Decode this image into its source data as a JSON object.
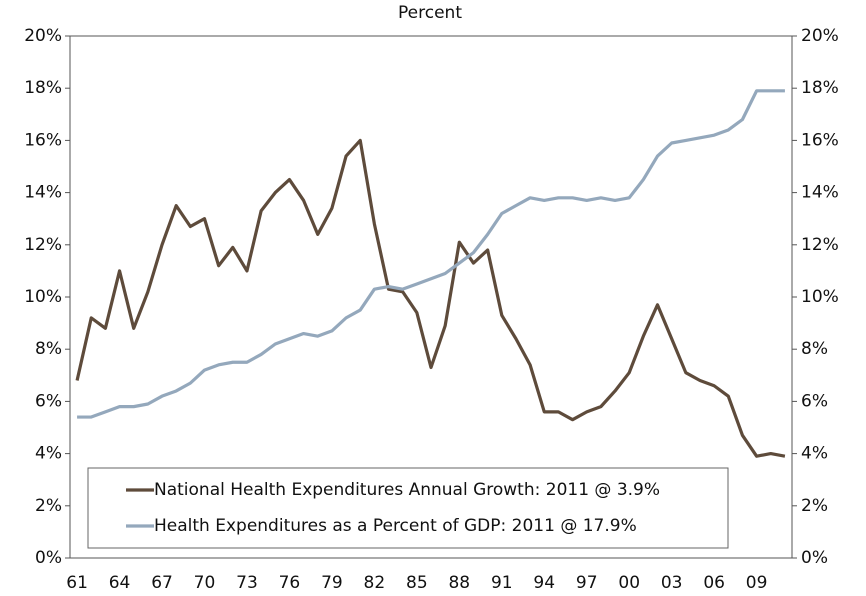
{
  "chart_data": {
    "type": "line",
    "title": "Percent",
    "categories": [
      "61",
      null,
      null,
      "64",
      null,
      null,
      "67",
      null,
      null,
      "70",
      null,
      null,
      "73",
      null,
      null,
      "76",
      null,
      null,
      "79",
      null,
      null,
      "82",
      null,
      null,
      "85",
      null,
      null,
      "88",
      null,
      null,
      "91",
      null,
      null,
      "94",
      null,
      null,
      "97",
      null,
      null,
      "00",
      null,
      null,
      "03",
      null,
      null,
      "06",
      null,
      null,
      "09",
      null,
      null
    ],
    "series": [
      {
        "name": "National Health Expenditures Annual Growth: 2011 @ 3.9%",
        "color": "#5e4b3b",
        "values": [
          6.8,
          9.2,
          8.8,
          11.0,
          8.8,
          10.2,
          12.0,
          13.5,
          12.7,
          13.0,
          11.2,
          11.9,
          11.0,
          13.3,
          14.0,
          14.5,
          13.7,
          12.4,
          13.4,
          15.4,
          16.0,
          12.8,
          10.3,
          10.2,
          9.4,
          7.3,
          8.9,
          12.1,
          11.3,
          11.8,
          9.3,
          8.4,
          7.4,
          5.6,
          5.6,
          5.3,
          5.6,
          5.8,
          6.4,
          7.1,
          8.5,
          9.7,
          8.4,
          7.1,
          6.8,
          6.6,
          6.2,
          4.7,
          3.9,
          4.0,
          3.9
        ]
      },
      {
        "name": "Health Expenditures as a Percent of GDP: 2011 @ 17.9%",
        "color": "#94a8bc",
        "values": [
          5.4,
          5.4,
          5.6,
          5.8,
          5.8,
          5.9,
          6.2,
          6.4,
          6.7,
          7.2,
          7.4,
          7.5,
          7.5,
          7.8,
          8.2,
          8.4,
          8.6,
          8.5,
          8.7,
          9.2,
          9.5,
          10.3,
          10.4,
          10.3,
          10.5,
          10.7,
          10.9,
          11.3,
          11.7,
          12.4,
          13.2,
          13.5,
          13.8,
          13.7,
          13.8,
          13.8,
          13.7,
          13.8,
          13.7,
          13.8,
          14.5,
          15.4,
          15.9,
          16.0,
          16.1,
          16.2,
          16.4,
          16.8,
          17.9,
          17.9,
          17.9
        ]
      }
    ],
    "ylim": [
      0,
      20
    ],
    "yticks": [
      {
        "value": 0,
        "label": "0%"
      },
      {
        "value": 2,
        "label": "2%"
      },
      {
        "value": 4,
        "label": "4%"
      },
      {
        "value": 6,
        "label": "6%"
      },
      {
        "value": 8,
        "label": "8%"
      },
      {
        "value": 10,
        "label": "10%"
      },
      {
        "value": 12,
        "label": "12%"
      },
      {
        "value": 14,
        "label": "14%"
      },
      {
        "value": 16,
        "label": "16%"
      },
      {
        "value": 18,
        "label": "18%"
      },
      {
        "value": 20,
        "label": "20%"
      }
    ],
    "y2lim": [
      0,
      20
    ],
    "y2ticks": [
      {
        "value": 0,
        "label": "0%"
      },
      {
        "value": 2,
        "label": "2%"
      },
      {
        "value": 4,
        "label": "4%"
      },
      {
        "value": 6,
        "label": "6%"
      },
      {
        "value": 8,
        "label": "8%"
      },
      {
        "value": 10,
        "label": "10%"
      },
      {
        "value": 12,
        "label": "12%"
      },
      {
        "value": 14,
        "label": "14%"
      },
      {
        "value": 16,
        "label": "16%"
      },
      {
        "value": 18,
        "label": "18%"
      },
      {
        "value": 20,
        "label": "20%"
      }
    ],
    "grid": false,
    "legend": "lower left"
  }
}
